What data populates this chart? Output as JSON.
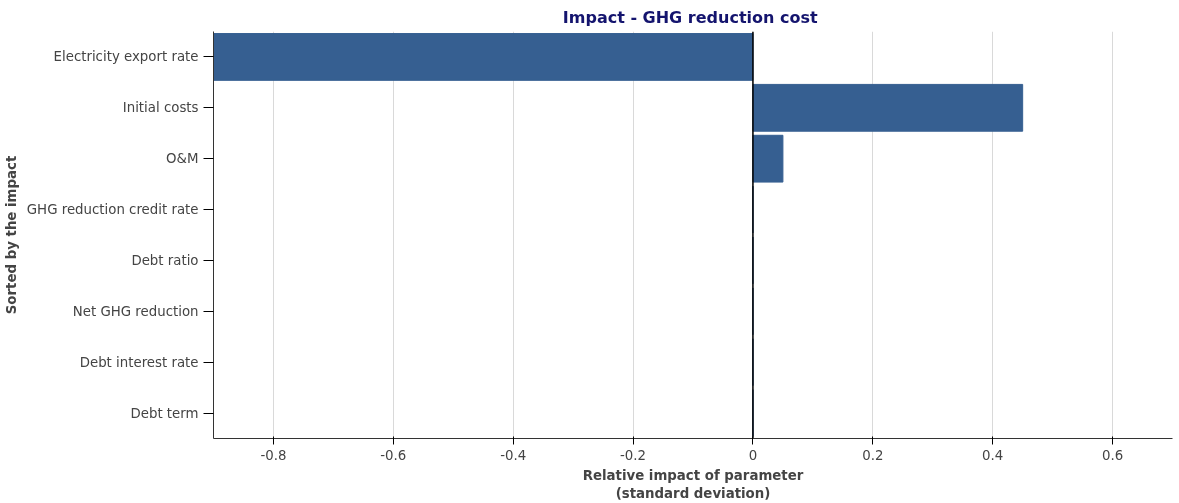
{
  "chart_data": {
    "type": "bar",
    "orientation": "horizontal",
    "title": "Impact -  GHG reduction cost",
    "xlabel": "Relative impact of parameter\n(standard deviation)",
    "ylabel": "Sorted by the impact",
    "categories": [
      "Electricity export rate",
      "Initial costs",
      "O&M",
      "GHG reduction credit rate",
      "Debt ratio",
      "Net GHG reduction",
      "Debt interest rate",
      "Debt term"
    ],
    "values": [
      -0.9,
      0.45,
      0.05,
      0,
      0,
      0,
      0,
      0
    ],
    "color": "#365f91",
    "xlim": [
      -0.9,
      0.7
    ],
    "xticks": [
      -0.8,
      -0.6,
      -0.4,
      -0.2,
      0,
      0.2,
      0.4,
      0.6
    ],
    "grid": "x",
    "ref_lines": [
      {
        "axis": "x",
        "value": 0,
        "color": "#000000"
      }
    ]
  }
}
